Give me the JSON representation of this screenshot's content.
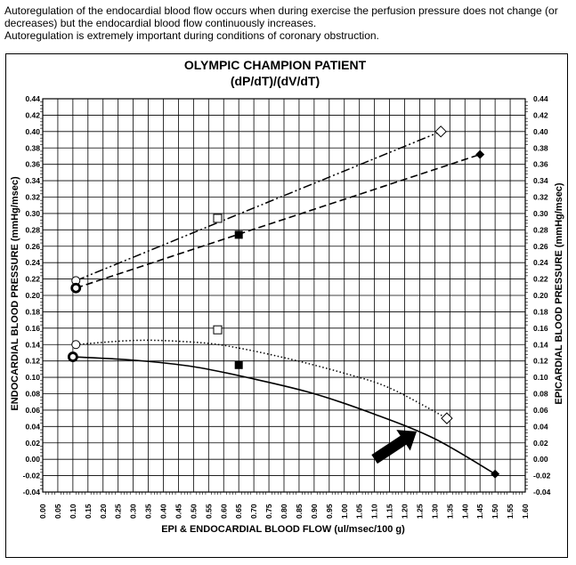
{
  "caption": {
    "line1": "Autoregulation of the endocardial blood flow occurs when during exercise the perfusion pressure does not change (or",
    "line2": "decreases) but the endocardial blood flow continuously increases.",
    "line3": "Autoregulation is extremely important during conditions of coronary obstruction."
  },
  "chart_data": {
    "type": "scatter",
    "title": "OLYMPIC CHAMPION PATIENT",
    "subtitle": "(dP/dT)/(dV/dT)",
    "xlabel": "EPI & ENDOCARDIAL BLOOD FLOW (ul/msec/100 g)",
    "ylabel_left": "ENDOCARDIAL BLOOD PRESSURE (mmHg/msec)",
    "ylabel_right": "EPICARDIAL BLOOD PRESSURE (mmHg/msec)",
    "xlim": [
      0.0,
      1.6
    ],
    "ylim": [
      -0.04,
      0.44
    ],
    "x_ticks": [
      "0.00",
      "0.05",
      "0.10",
      "0.15",
      "0.20",
      "0.25",
      "0.30",
      "0.35",
      "0.40",
      "0.45",
      "0.50",
      "0.55",
      "0.60",
      "0.65",
      "0.70",
      "0.75",
      "0.80",
      "0.85",
      "0.90",
      "0.95",
      "1.00",
      "1.05",
      "1.10",
      "1.15",
      "1.20",
      "1.25",
      "1.30",
      "1.35",
      "1.40",
      "1.45",
      "1.50",
      "1.55",
      "1.60"
    ],
    "y_ticks": [
      "-0.04",
      "-0.02",
      "0.00",
      "0.02",
      "0.04",
      "0.06",
      "0.08",
      "0.10",
      "0.12",
      "0.14",
      "0.16",
      "0.18",
      "0.20",
      "0.22",
      "0.24",
      "0.26",
      "0.28",
      "0.30",
      "0.32",
      "0.34",
      "0.36",
      "0.38",
      "0.40",
      "0.42",
      "0.44"
    ],
    "grid": true,
    "series": [
      {
        "line_style": "dash-dot-dot",
        "points": [
          {
            "x": 0.11,
            "y": 0.218,
            "marker": "open-circle"
          },
          {
            "x": 0.58,
            "y": 0.294,
            "marker": "open-square"
          },
          {
            "x": 1.32,
            "y": 0.4,
            "marker": "open-diamond"
          }
        ]
      },
      {
        "line_style": "dashed",
        "points": [
          {
            "x": 0.11,
            "y": 0.209,
            "marker": "bold-open-circle"
          },
          {
            "x": 0.65,
            "y": 0.274,
            "marker": "filled-square"
          },
          {
            "x": 1.45,
            "y": 0.372,
            "marker": "filled-diamond"
          }
        ]
      },
      {
        "line_style": "dotted",
        "curve": [
          [
            0.11,
            0.14
          ],
          [
            0.3,
            0.145
          ],
          [
            0.45,
            0.144
          ],
          [
            0.6,
            0.139
          ],
          [
            0.8,
            0.124
          ],
          [
            1.0,
            0.105
          ],
          [
            1.15,
            0.087
          ],
          [
            1.34,
            0.05
          ]
        ],
        "points": [
          {
            "x": 0.11,
            "y": 0.14,
            "marker": "open-circle"
          },
          {
            "x": 0.58,
            "y": 0.158,
            "marker": "open-square"
          },
          {
            "x": 1.34,
            "y": 0.05,
            "marker": "open-diamond"
          }
        ]
      },
      {
        "line_style": "solid",
        "curve": [
          [
            0.1,
            0.125
          ],
          [
            0.3,
            0.121
          ],
          [
            0.5,
            0.113
          ],
          [
            0.7,
            0.098
          ],
          [
            0.9,
            0.08
          ],
          [
            1.1,
            0.055
          ],
          [
            1.3,
            0.025
          ],
          [
            1.5,
            -0.018
          ]
        ],
        "points": [
          {
            "x": 0.1,
            "y": 0.125,
            "marker": "bold-open-circle"
          },
          {
            "x": 0.65,
            "y": 0.115,
            "marker": "filled-square"
          },
          {
            "x": 1.5,
            "y": -0.018,
            "marker": "filled-diamond"
          }
        ]
      }
    ],
    "annotations": [
      {
        "type": "arrow",
        "from": [
          1.1,
          0.0
        ],
        "to": [
          1.24,
          0.034
        ]
      }
    ]
  }
}
